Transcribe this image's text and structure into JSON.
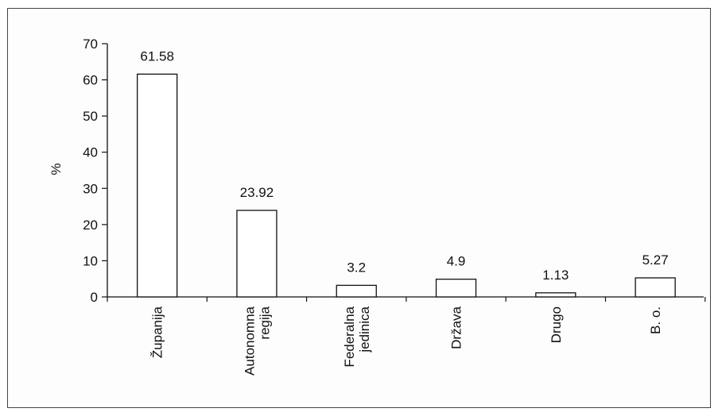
{
  "chart_data": {
    "type": "bar",
    "categories": [
      [
        "Županija"
      ],
      [
        "Autonomna",
        "regija"
      ],
      [
        "Federalna",
        "jedinica"
      ],
      [
        "Država"
      ],
      [
        "Drugo"
      ],
      [
        "B. o."
      ]
    ],
    "values": [
      61.58,
      23.92,
      3.2,
      4.9,
      1.13,
      5.27
    ],
    "data_labels": [
      "61.58",
      "23.92",
      "3.2",
      "4.9",
      "1.13",
      "5.27"
    ],
    "ylabel": "%",
    "ylim": [
      0,
      70
    ],
    "yticks": [
      0,
      10,
      20,
      30,
      40,
      50,
      60,
      70
    ],
    "grid": false,
    "legend": "none",
    "colors": {
      "bar_fill": "#ffffff",
      "bar_stroke": "#111111",
      "axis": "#111111"
    }
  }
}
